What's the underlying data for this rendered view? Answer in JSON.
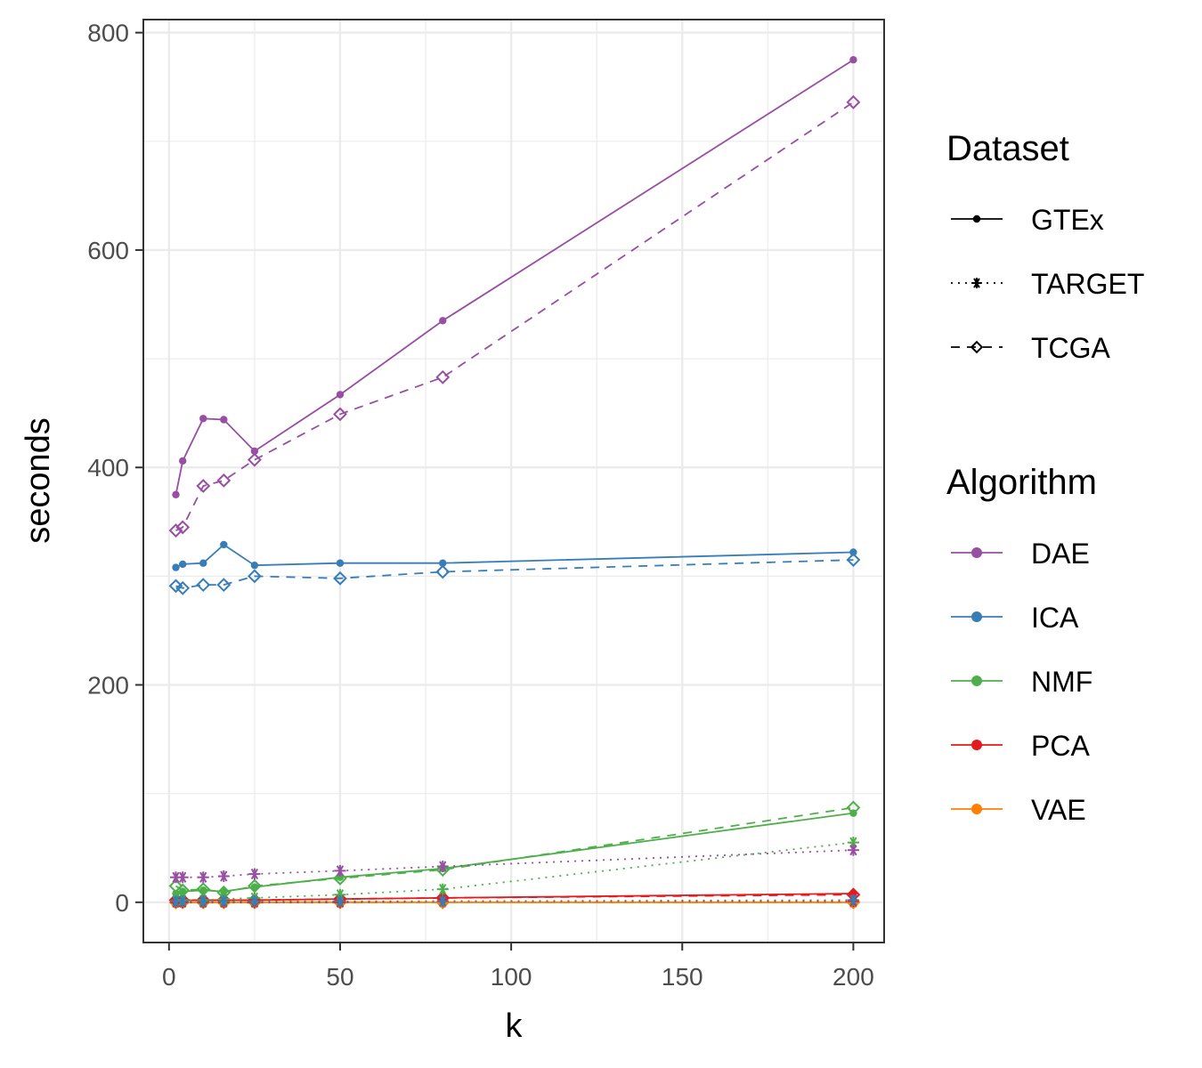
{
  "chart_data": {
    "type": "line",
    "xlabel": "k",
    "ylabel": "seconds",
    "xlim": [
      -7.5,
      209
    ],
    "ylim": [
      -37,
      812
    ],
    "x_ticks": [
      0,
      50,
      100,
      150,
      200
    ],
    "y_ticks": [
      0,
      200,
      400,
      600,
      800
    ],
    "x": [
      2,
      4,
      10,
      16,
      25,
      50,
      80,
      200
    ],
    "grid": true,
    "legend_placement": "right",
    "legends": {
      "dataset": {
        "title": "Dataset",
        "entries": [
          {
            "name": "GTEx",
            "line": "solid",
            "marker": "dot"
          },
          {
            "name": "TARGET",
            "line": "dotted",
            "marker": "asterisk"
          },
          {
            "name": "TCGA",
            "line": "dashed",
            "marker": "diamond"
          }
        ]
      },
      "algorithm": {
        "title": "Algorithm",
        "entries": [
          {
            "name": "DAE",
            "color": "#984ea3"
          },
          {
            "name": "ICA",
            "color": "#377eb8"
          },
          {
            "name": "NMF",
            "color": "#4daf4a"
          },
          {
            "name": "PCA",
            "color": "#e41a1c"
          },
          {
            "name": "VAE",
            "color": "#ff7f00"
          }
        ]
      }
    },
    "series": [
      {
        "algorithm": "DAE",
        "dataset": "GTEx",
        "values": [
          375,
          406,
          445,
          444,
          415,
          467,
          535,
          775
        ]
      },
      {
        "algorithm": "DAE",
        "dataset": "TCGA",
        "values": [
          342,
          345,
          383,
          388,
          407,
          449,
          483,
          736
        ]
      },
      {
        "algorithm": "DAE",
        "dataset": "TARGET",
        "values": [
          23,
          23,
          23,
          24,
          26,
          29,
          33,
          48
        ]
      },
      {
        "algorithm": "ICA",
        "dataset": "GTEx",
        "values": [
          308,
          311,
          312,
          329,
          310,
          312,
          312,
          322
        ]
      },
      {
        "algorithm": "ICA",
        "dataset": "TCGA",
        "values": [
          291,
          289,
          292,
          292,
          300,
          298,
          304,
          315
        ]
      },
      {
        "algorithm": "ICA",
        "dataset": "TARGET",
        "values": [
          1,
          1,
          1,
          1,
          1,
          1,
          1,
          2
        ]
      },
      {
        "algorithm": "NMF",
        "dataset": "GTEx",
        "values": [
          8,
          10,
          11,
          10,
          14,
          23,
          31,
          82
        ]
      },
      {
        "algorithm": "NMF",
        "dataset": "TCGA",
        "values": [
          15,
          11,
          12,
          9,
          15,
          22,
          30,
          87
        ]
      },
      {
        "algorithm": "NMF",
        "dataset": "TARGET",
        "values": [
          1,
          2,
          2,
          3,
          4,
          7,
          12,
          55
        ]
      },
      {
        "algorithm": "PCA",
        "dataset": "GTEx",
        "values": [
          2,
          2,
          2,
          2,
          2,
          3,
          4,
          8
        ]
      },
      {
        "algorithm": "PCA",
        "dataset": "TCGA",
        "values": [
          2,
          2,
          2,
          2,
          2,
          3,
          4,
          7
        ]
      },
      {
        "algorithm": "PCA",
        "dataset": "TARGET",
        "values": [
          0,
          0,
          0,
          0,
          0,
          0,
          1,
          1
        ]
      },
      {
        "algorithm": "VAE",
        "dataset": "GTEx",
        "values": [
          0,
          0,
          0,
          0,
          0,
          0,
          0,
          0
        ]
      },
      {
        "algorithm": "VAE",
        "dataset": "TCGA",
        "values": [
          0,
          0,
          0,
          0,
          0,
          0,
          0,
          0
        ]
      },
      {
        "algorithm": "VAE",
        "dataset": "TARGET",
        "values": [
          0,
          0,
          0,
          0,
          0,
          0,
          0,
          0
        ]
      }
    ]
  }
}
